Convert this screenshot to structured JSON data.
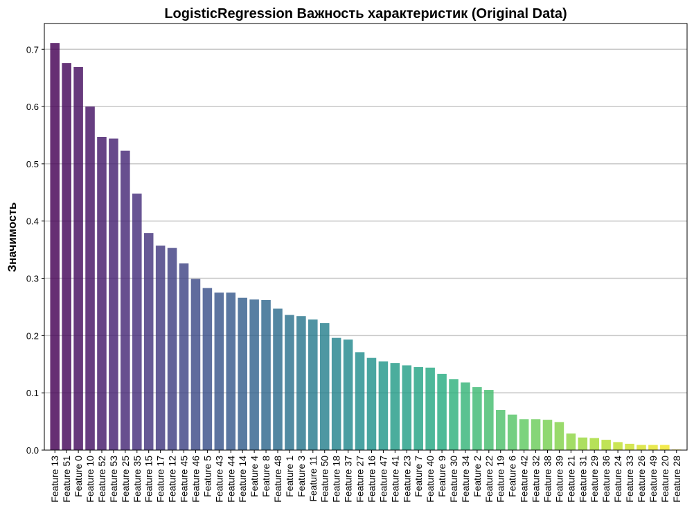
{
  "chart_data": {
    "type": "bar",
    "title": "LogisticRegression Важность характеристик (Original Data)",
    "xlabel": "",
    "ylabel": "Значимость",
    "ylim": [
      0,
      0.745
    ],
    "yticks": [
      "0.0",
      "0.1",
      "0.2",
      "0.3",
      "0.4",
      "0.5",
      "0.6",
      "0.7"
    ],
    "grid": "horizontal",
    "colormap": "viridis",
    "color_start": "#440154",
    "color_end": "#fde725",
    "categories": [
      "Feature 13",
      "Feature 51",
      "Feature 0",
      "Feature 10",
      "Feature 52",
      "Feature 53",
      "Feature 25",
      "Feature 35",
      "Feature 15",
      "Feature 17",
      "Feature 12",
      "Feature 45",
      "Feature 46",
      "Feature 5",
      "Feature 43",
      "Feature 44",
      "Feature 14",
      "Feature 4",
      "Feature 8",
      "Feature 48",
      "Feature 1",
      "Feature 3",
      "Feature 11",
      "Feature 50",
      "Feature 18",
      "Feature 37",
      "Feature 27",
      "Feature 16",
      "Feature 47",
      "Feature 41",
      "Feature 23",
      "Feature 7",
      "Feature 40",
      "Feature 9",
      "Feature 30",
      "Feature 34",
      "Feature 2",
      "Feature 22",
      "Feature 19",
      "Feature 6",
      "Feature 42",
      "Feature 32",
      "Feature 38",
      "Feature 39",
      "Feature 21",
      "Feature 31",
      "Feature 29",
      "Feature 36",
      "Feature 24",
      "Feature 33",
      "Feature 26",
      "Feature 49",
      "Feature 20",
      "Feature 28"
    ],
    "values": [
      0.711,
      0.676,
      0.669,
      0.6,
      0.547,
      0.544,
      0.523,
      0.448,
      0.379,
      0.357,
      0.353,
      0.326,
      0.299,
      0.283,
      0.275,
      0.275,
      0.266,
      0.263,
      0.262,
      0.247,
      0.236,
      0.234,
      0.228,
      0.222,
      0.196,
      0.193,
      0.171,
      0.161,
      0.155,
      0.152,
      0.148,
      0.145,
      0.144,
      0.133,
      0.124,
      0.118,
      0.11,
      0.105,
      0.07,
      0.062,
      0.054,
      0.054,
      0.053,
      0.049,
      0.029,
      0.022,
      0.021,
      0.018,
      0.014,
      0.011,
      0.009,
      0.009,
      0.009,
      0.001
    ]
  }
}
